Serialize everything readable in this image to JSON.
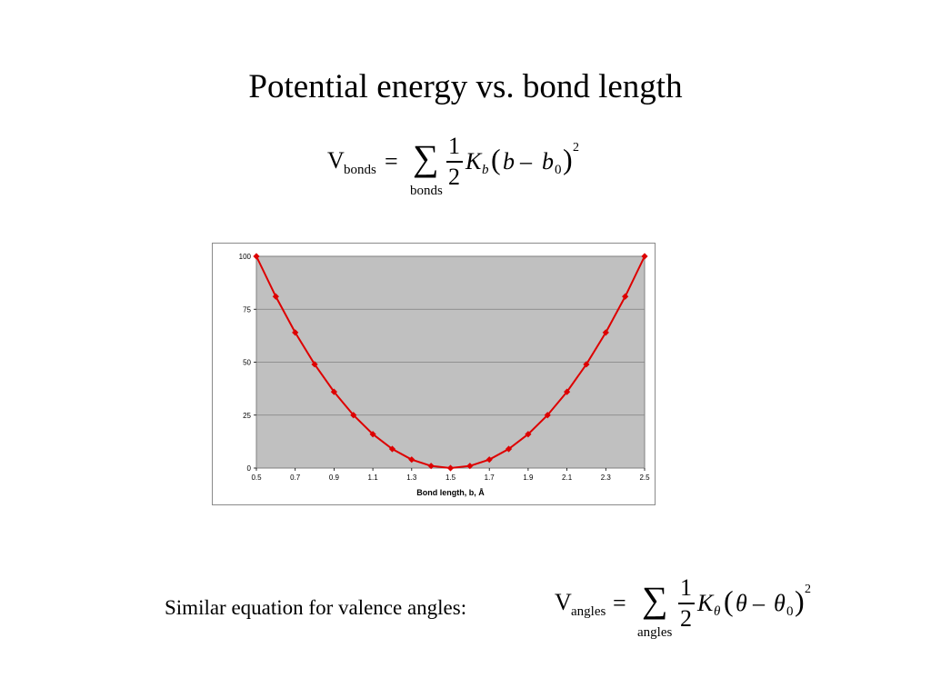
{
  "slide": {
    "title": "Potential energy vs. bond length",
    "caption": "Similar equation for valence angles:"
  },
  "bond_equation": {
    "lhs_symbol": "V",
    "lhs_subscript": "bonds",
    "equals": "=",
    "sum_symbol": "∑",
    "sum_index": "bonds",
    "frac_num": "1",
    "frac_den": "2",
    "constant": "K",
    "constant_subscript": "b",
    "open_paren": "(",
    "term": "b",
    "minus": "–",
    "ref_term": "b",
    "ref_subscript": "0",
    "close_paren": ")",
    "power": "2"
  },
  "angle_equation": {
    "lhs_symbol": "V",
    "lhs_subscript": "angles",
    "equals": "=",
    "sum_symbol": "∑",
    "sum_index": "angles",
    "frac_num": "1",
    "frac_den": "2",
    "constant": "K",
    "constant_subscript": "θ",
    "open_paren": "(",
    "term": "θ",
    "minus": "–",
    "ref_term": "θ",
    "ref_subscript": "0",
    "close_paren": ")",
    "power": "2"
  },
  "chart_data": {
    "type": "line",
    "title": "",
    "xlabel": "Bond length, b, Å",
    "ylabel": "",
    "x": [
      0.5,
      0.6,
      0.7,
      0.8,
      0.9,
      1.0,
      1.1,
      1.2,
      1.3,
      1.4,
      1.5,
      1.6,
      1.7,
      1.8,
      1.9,
      2.0,
      2.1,
      2.2,
      2.3,
      2.4,
      2.5
    ],
    "series": [
      {
        "values": [
          100,
          81,
          64,
          49,
          36,
          25,
          16,
          9,
          4,
          1,
          0,
          1,
          4,
          9,
          16,
          25,
          36,
          49,
          64,
          81,
          100
        ]
      }
    ],
    "xlim": [
      0.5,
      2.5
    ],
    "ylim": [
      0,
      100
    ],
    "x_ticks": [
      "0.5",
      "0.7",
      "0.9",
      "1.1",
      "1.3",
      "1.5",
      "1.7",
      "1.9",
      "2.1",
      "2.3",
      "2.5"
    ],
    "y_ticks": [
      "0",
      "25",
      "50",
      "75",
      "100"
    ],
    "grid": true,
    "marker": "diamond",
    "plot_background": "#c0c0c0",
    "line_color": "#dd0000",
    "gridline_color": "#808080"
  }
}
